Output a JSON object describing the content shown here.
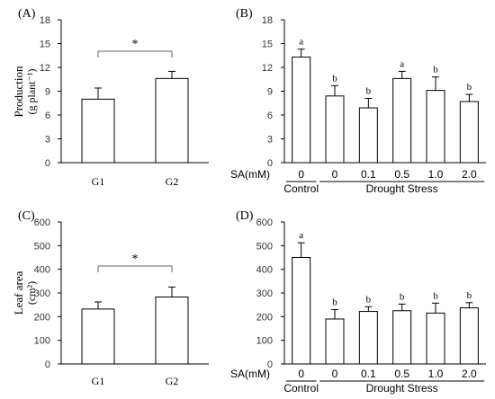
{
  "chart_data": [
    {
      "panel": "(A)",
      "type": "bar",
      "categories": [
        "G1",
        "G2"
      ],
      "values": [
        8.0,
        10.6
      ],
      "errors": [
        1.4,
        0.9
      ],
      "ylabel": "Production",
      "ylabel_unit": "(g plant⁻¹)",
      "ylim": [
        0,
        18
      ],
      "yticks": [
        0,
        3,
        6,
        9,
        12,
        15,
        18
      ],
      "significance": "*"
    },
    {
      "panel": "(B)",
      "type": "bar",
      "categories": [
        "0",
        "0",
        "0.1",
        "0.5",
        "1.0",
        "2.0"
      ],
      "values": [
        13.3,
        8.4,
        6.9,
        10.6,
        9.1,
        7.7
      ],
      "errors": [
        1.0,
        1.3,
        1.2,
        0.9,
        1.7,
        0.9
      ],
      "letters": [
        "a",
        "b",
        "b",
        "a",
        "b",
        "b"
      ],
      "ylim": [
        0,
        18
      ],
      "yticks": [
        0,
        3,
        6,
        9,
        12,
        15,
        18
      ],
      "factor_label": "SA(mM)",
      "groups": [
        {
          "label": "Control",
          "from": 0,
          "to": 0
        },
        {
          "label": "Drought Stress",
          "from": 1,
          "to": 5
        }
      ]
    },
    {
      "panel": "(C)",
      "type": "bar",
      "categories": [
        "G1",
        "G2"
      ],
      "values": [
        232,
        283
      ],
      "errors": [
        30,
        42
      ],
      "ylabel": "Leaf area",
      "ylabel_unit": "(cm²)",
      "ylim": [
        0,
        600
      ],
      "yticks": [
        0,
        100,
        200,
        300,
        400,
        500,
        600
      ],
      "significance": "*"
    },
    {
      "panel": "(D)",
      "type": "bar",
      "categories": [
        "0",
        "0",
        "0.1",
        "0.5",
        "1.0",
        "2.0"
      ],
      "values": [
        450,
        190,
        222,
        225,
        215,
        237
      ],
      "errors": [
        62,
        40,
        20,
        28,
        42,
        22
      ],
      "letters": [
        "a",
        "b",
        "b",
        "b",
        "b",
        "b"
      ],
      "ylim": [
        0,
        600
      ],
      "yticks": [
        0,
        100,
        200,
        300,
        400,
        500,
        600
      ],
      "factor_label": "SA(mM)",
      "groups": [
        {
          "label": "Control",
          "from": 0,
          "to": 0
        },
        {
          "label": "Drought Stress",
          "from": 1,
          "to": 5
        }
      ]
    }
  ]
}
